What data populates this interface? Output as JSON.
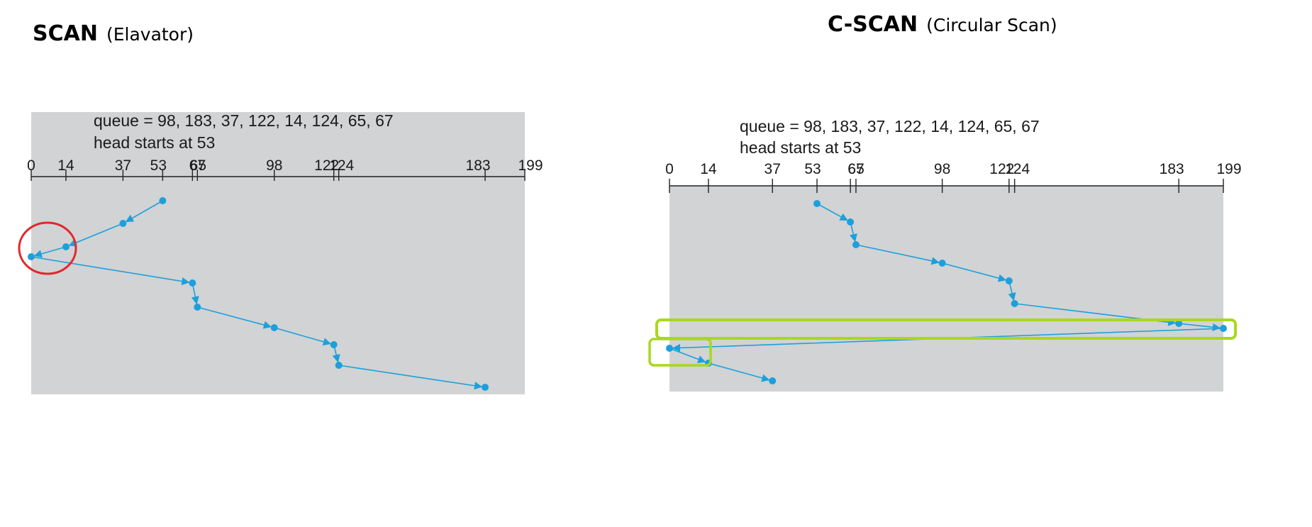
{
  "diagrams": [
    {
      "id": "scan",
      "title": "SCAN",
      "subtitle": "(Elavator)",
      "queue_text": "queue = 98, 183, 37, 122, 14, 124, 65, 67",
      "head_text": "head starts at 53",
      "cylinder_range": [
        0,
        199
      ],
      "tick_labels": [
        "0",
        "14",
        "37",
        "53",
        "65",
        "67",
        "98",
        "122",
        "124",
        "183",
        "199"
      ],
      "sequence": [
        53,
        37,
        14,
        0,
        65,
        67,
        98,
        122,
        124,
        183
      ]
    },
    {
      "id": "cscan",
      "title": "C-SCAN",
      "subtitle": "(Circular Scan)",
      "queue_text": "queue = 98, 183, 37, 122, 14, 124, 65, 67",
      "head_text": "head starts at 53",
      "cylinder_range": [
        0,
        199
      ],
      "tick_labels": [
        "0",
        "14",
        "37",
        "53",
        "65",
        "67",
        "98",
        "122",
        "124",
        "183",
        "199"
      ],
      "sequence": [
        53,
        65,
        67,
        98,
        122,
        124,
        183,
        199,
        0,
        14,
        37
      ]
    }
  ],
  "colors": {
    "plot_background": "#d1d3d4",
    "path": "#1ca0dc",
    "highlight_red": "#e3262e",
    "highlight_green": "#a8d81e"
  }
}
